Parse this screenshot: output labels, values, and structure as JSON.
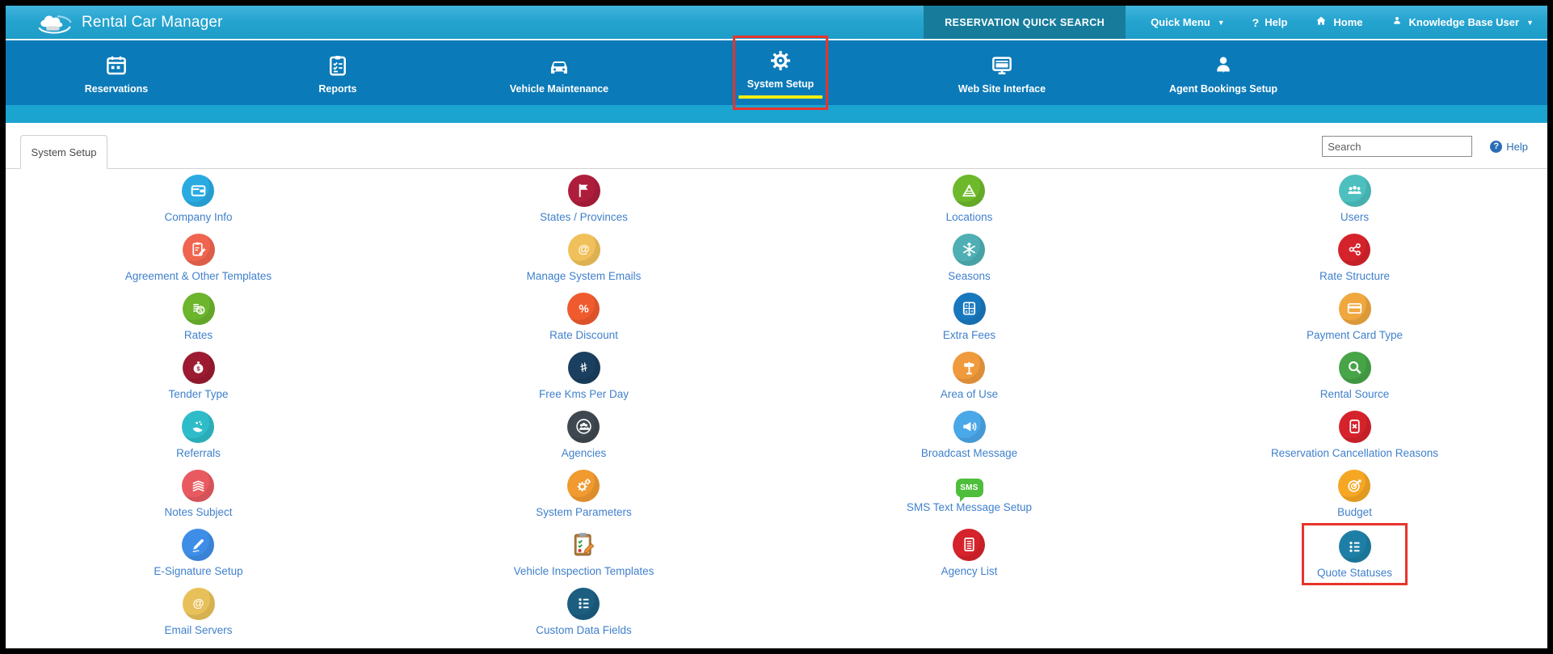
{
  "app": {
    "title": "Rental Car Manager"
  },
  "topbar": {
    "quick_search_label": "RESERVATION QUICK SEARCH",
    "menu": [
      {
        "label": "Quick Menu",
        "icon": "caret-down-icon",
        "caret": true
      },
      {
        "label": "Help",
        "icon": "question-icon"
      },
      {
        "label": "Home",
        "icon": "home-icon"
      },
      {
        "label": "Knowledge Base User",
        "icon": "user-icon",
        "caret": true
      }
    ]
  },
  "nav": {
    "items": [
      {
        "label": "Reservations",
        "icon": "calendar-icon"
      },
      {
        "label": "Reports",
        "icon": "checklist-icon"
      },
      {
        "label": "Vehicle Maintenance",
        "icon": "car-icon"
      },
      {
        "label": "System Setup",
        "icon": "gear-icon",
        "active": true,
        "annotated": true
      },
      {
        "label": "Web Site Interface",
        "icon": "monitor-icon"
      },
      {
        "label": "Agent Bookings Setup",
        "icon": "agent-icon"
      }
    ]
  },
  "content": {
    "tab_label": "System Setup",
    "search_placeholder": "Search",
    "help_label": "Help"
  },
  "grid": {
    "items": [
      {
        "label": "Company Info",
        "icon": "wallet-icon",
        "color": "#29abe2"
      },
      {
        "label": "States / Provinces",
        "icon": "flag-icon",
        "color": "#ae1e3c"
      },
      {
        "label": "Locations",
        "icon": "track-icon",
        "color": "#6eb92b"
      },
      {
        "label": "Users",
        "icon": "users-icon",
        "color": "#4dbfbf"
      },
      {
        "label": "Agreement & Other Templates",
        "icon": "clipboard-pencil-icon",
        "color": "#f0654f"
      },
      {
        "label": "Manage System Emails",
        "icon": "at-icon",
        "color": "#f0c05a"
      },
      {
        "label": "Seasons",
        "icon": "snowflake-icon",
        "color": "#4fafb4"
      },
      {
        "label": "Rate Structure",
        "icon": "share-nodes-icon",
        "color": "#d6232b"
      },
      {
        "label": "Rates",
        "icon": "money-stack-icon",
        "color": "#6cb52d"
      },
      {
        "label": "Rate Discount",
        "icon": "percent-icon",
        "color": "#ef5b2f"
      },
      {
        "label": "Extra Fees",
        "icon": "calculator-icon",
        "color": "#1878be"
      },
      {
        "label": "Payment Card Type",
        "icon": "credit-card-icon",
        "color": "#efa73e"
      },
      {
        "label": "Tender Type",
        "icon": "money-bag-icon",
        "color": "#9c1b30"
      },
      {
        "label": "Free Kms Per Day",
        "icon": "road-kms-icon",
        "color": "#1b3f5e"
      },
      {
        "label": "Area of Use",
        "icon": "signpost-icon",
        "color": "#ef9a3c"
      },
      {
        "label": "Rental Source",
        "icon": "magnifier-icon",
        "color": "#47a447"
      },
      {
        "label": "Referrals",
        "icon": "hand-coins-icon",
        "color": "#2fbcc9"
      },
      {
        "label": "Agencies",
        "icon": "people-ring-icon",
        "color": "#3f4850"
      },
      {
        "label": "Broadcast Message",
        "icon": "megaphone-icon",
        "color": "#4aa7e8"
      },
      {
        "label": "Reservation Cancellation Reasons",
        "icon": "cancel-doc-icon",
        "color": "#d6232b"
      },
      {
        "label": "Notes Subject",
        "icon": "paper-stack-icon",
        "color": "#e85a60"
      },
      {
        "label": "System Parameters",
        "icon": "gears-icon",
        "color": "#f09a30"
      },
      {
        "label": "SMS Text Message Setup",
        "icon": "sms-bubble-icon",
        "color": "#4fbe3c",
        "shape": "bubble",
        "icon_text": "SMS"
      },
      {
        "label": "Budget",
        "icon": "target-dart-icon",
        "color": "#f5a623"
      },
      {
        "label": "E-Signature Setup",
        "icon": "pen-icon",
        "color": "#3e8ee8"
      },
      {
        "label": "Vehicle Inspection Templates",
        "icon": "inspection-clipboard-icon",
        "color": "",
        "shape": "image"
      },
      {
        "label": "Agency List",
        "icon": "doc-list-icon",
        "color": "#d6232b"
      },
      {
        "label": "Quote Statuses",
        "icon": "list-bullets-icon",
        "color": "#1e7fa6",
        "annotated": true
      },
      {
        "label": "Email Servers",
        "icon": "at-icon",
        "color": "#e8c05a"
      },
      {
        "label": "Custom Data Fields",
        "icon": "list-bullets-icon",
        "color": "#1c5e80"
      }
    ]
  },
  "colors": {
    "annotation": "#e8342b",
    "label_blue": "#4080cc"
  }
}
